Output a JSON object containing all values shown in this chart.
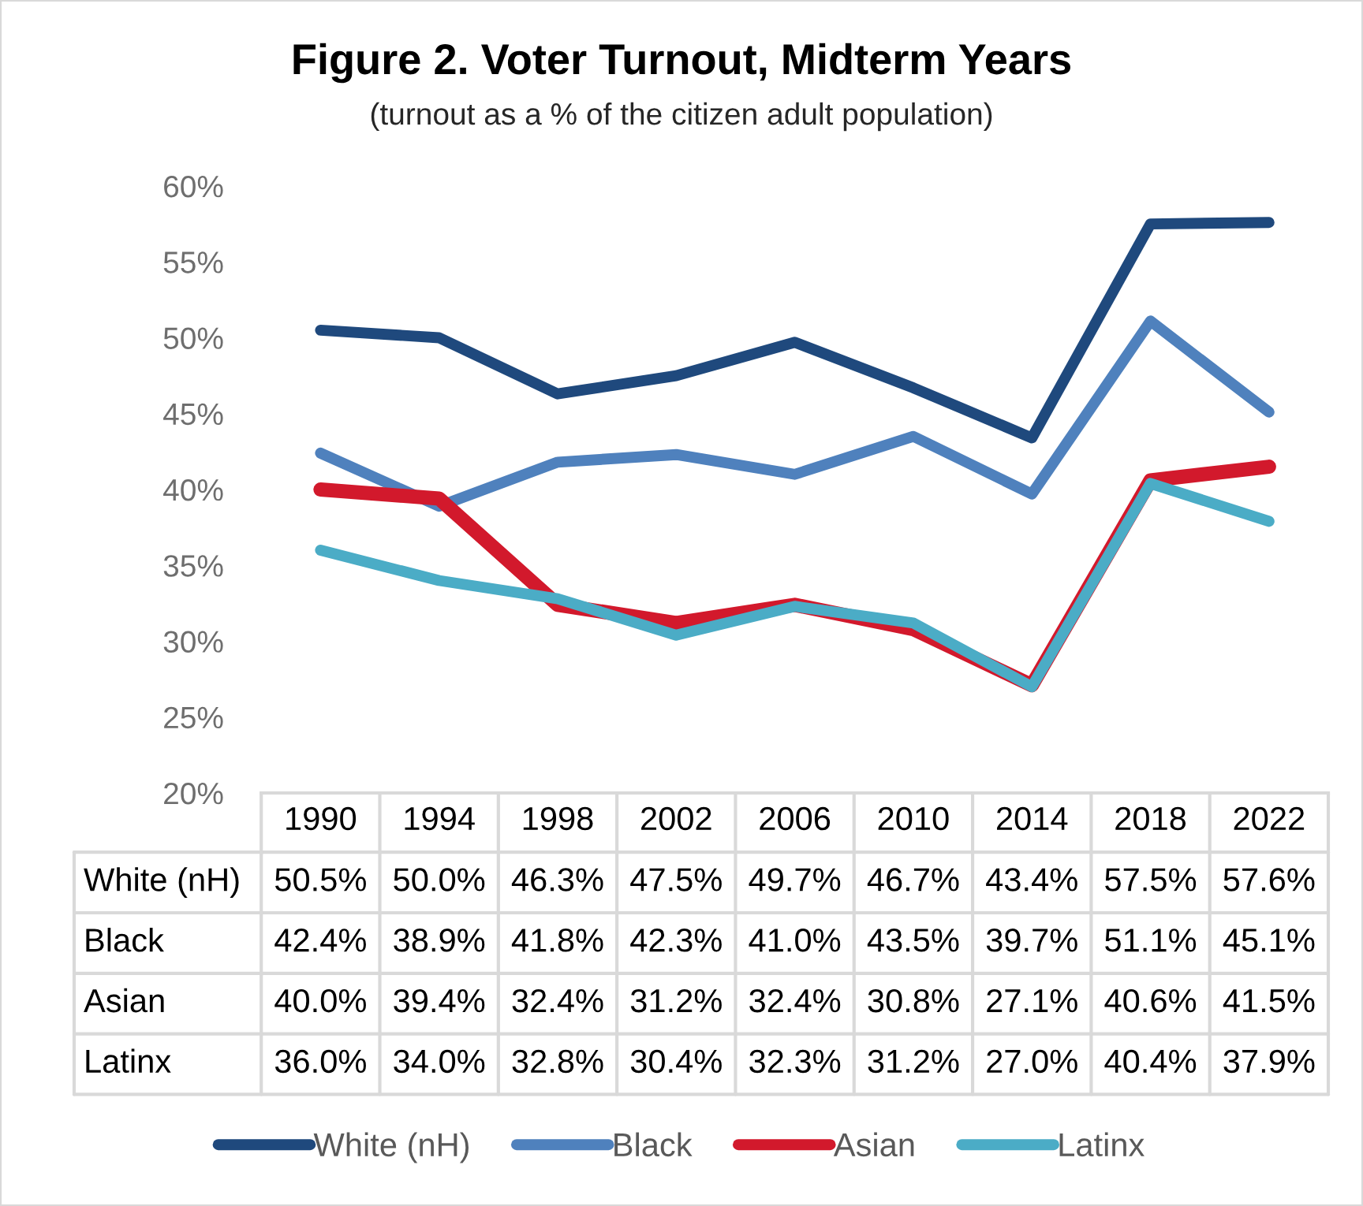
{
  "chart_data": {
    "type": "line",
    "title": "Figure 2. Voter Turnout, Midterm Years",
    "subtitle": "(turnout as a % of the citizen adult population)",
    "categories": [
      "1990",
      "1994",
      "1998",
      "2002",
      "2006",
      "2010",
      "2014",
      "2018",
      "2022"
    ],
    "series": [
      {
        "name": "White (nH)",
        "color": "#1f497d",
        "values": [
          50.5,
          50.0,
          46.3,
          47.5,
          49.7,
          46.7,
          43.4,
          57.5,
          57.6
        ],
        "value_labels": [
          "50.5%",
          "50.0%",
          "46.3%",
          "47.5%",
          "49.7%",
          "46.7%",
          "43.4%",
          "57.5%",
          "57.6%"
        ]
      },
      {
        "name": "Black",
        "color": "#4f81bd",
        "values": [
          42.4,
          38.9,
          41.8,
          42.3,
          41.0,
          43.5,
          39.7,
          51.1,
          45.1
        ],
        "value_labels": [
          "42.4%",
          "38.9%",
          "41.8%",
          "42.3%",
          "41.0%",
          "43.5%",
          "39.7%",
          "51.1%",
          "45.1%"
        ]
      },
      {
        "name": "Asian",
        "color": "#d2192c",
        "values": [
          40.0,
          39.4,
          32.4,
          31.2,
          32.4,
          30.8,
          27.1,
          40.6,
          41.5
        ],
        "value_labels": [
          "40.0%",
          "39.4%",
          "32.4%",
          "31.2%",
          "32.4%",
          "30.8%",
          "27.1%",
          "40.6%",
          "41.5%"
        ]
      },
      {
        "name": "Latinx",
        "color": "#4bacc6",
        "values": [
          36.0,
          34.0,
          32.8,
          30.4,
          32.3,
          31.2,
          27.0,
          40.4,
          37.9
        ],
        "value_labels": [
          "36.0%",
          "34.0%",
          "32.8%",
          "30.4%",
          "32.3%",
          "31.2%",
          "27.0%",
          "40.4%",
          "37.9%"
        ]
      }
    ],
    "ylim": [
      20,
      60
    ],
    "yticks": [
      {
        "value": 20,
        "label": "20%"
      },
      {
        "value": 25,
        "label": "25%"
      },
      {
        "value": 30,
        "label": "30%"
      },
      {
        "value": 35,
        "label": "35%"
      },
      {
        "value": 40,
        "label": "40%"
      },
      {
        "value": 45,
        "label": "45%"
      },
      {
        "value": 50,
        "label": "50%"
      },
      {
        "value": 55,
        "label": "55%"
      },
      {
        "value": 60,
        "label": "60%"
      }
    ],
    "legend": "bottom",
    "line_style": "solid"
  }
}
